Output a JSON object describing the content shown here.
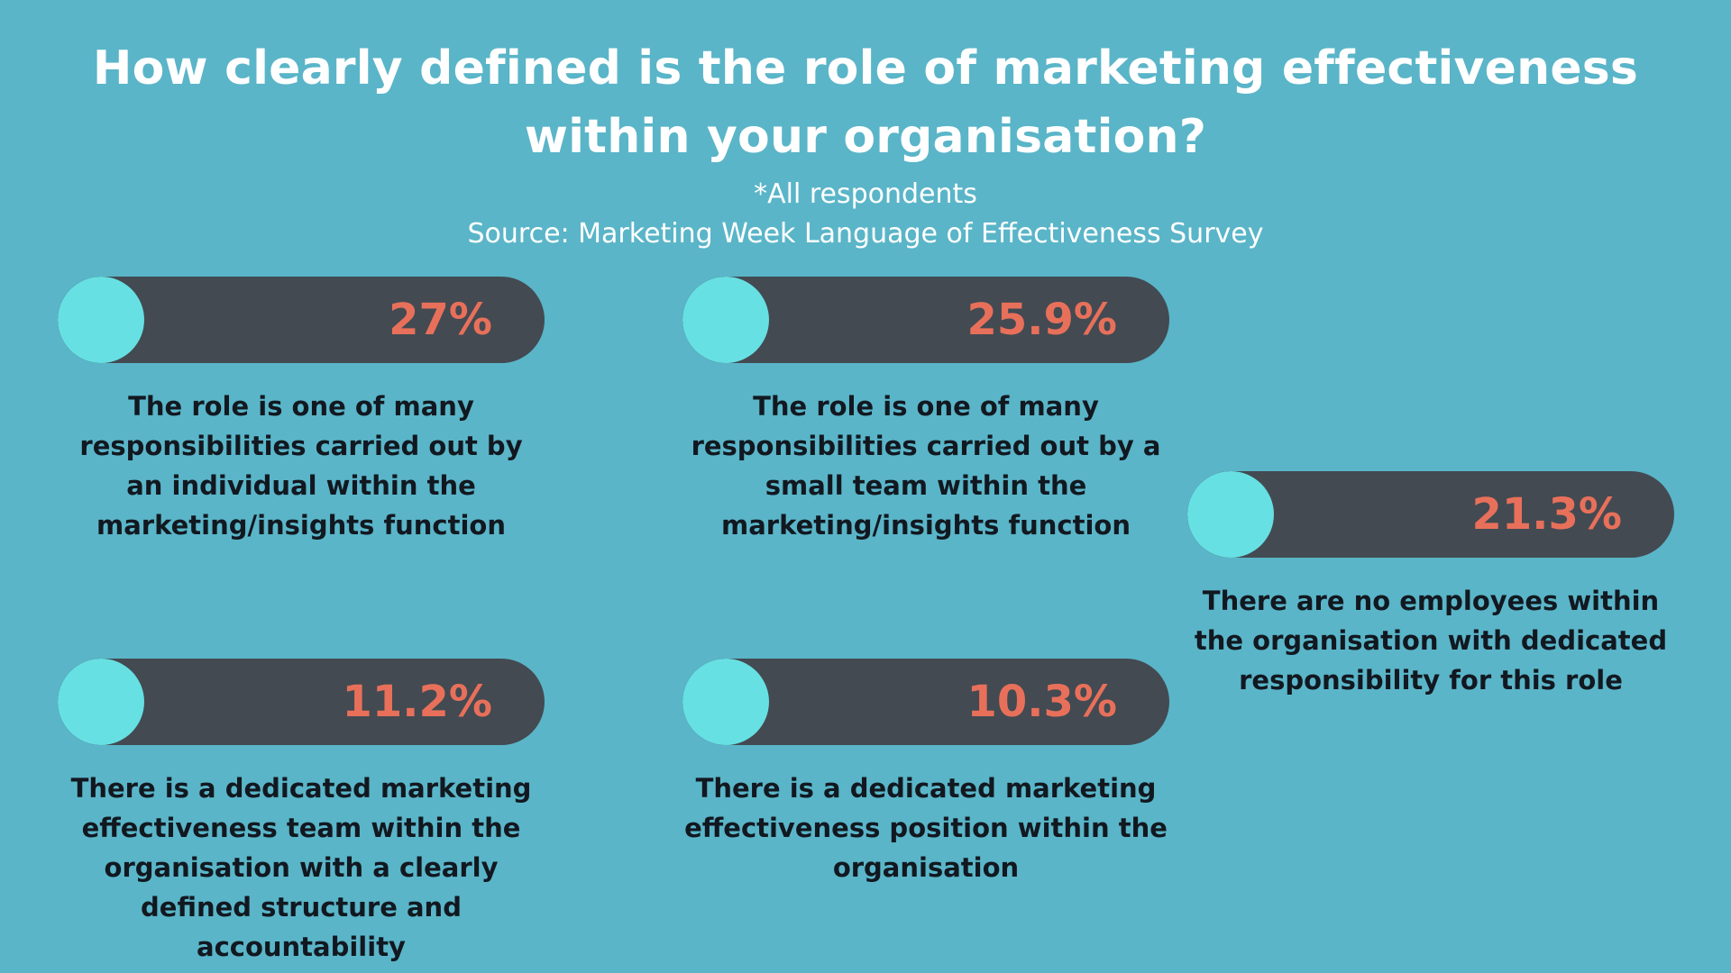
{
  "header": {
    "title_line1": "How clearly defined is the role of marketing effectiveness",
    "title_line2": "within your organisation?",
    "subtitle": "*All respondents",
    "source": "Source: Marketing Week Language of Effectiveness Survey"
  },
  "colors": {
    "background": "#5ab5c8",
    "track": "#434a52",
    "fill": "#67e0e3",
    "percent_text": "#e8705a"
  },
  "chart_data": {
    "type": "bar",
    "title": "How clearly defined is the role of marketing effectiveness within your organisation?",
    "subtitle": "*All respondents",
    "source": "Source: Marketing Week Language of Effectiveness Survey",
    "categories": [
      "The role is one of many responsibilities carried out by an individual within the marketing/insights function",
      "The role is one of many responsibilities carried out by a small team within the marketing/insights function",
      "There are no employees within the organisation with dedicated responsibility for this role",
      "There is a dedicated marketing effectiveness team within the organisation with a clearly defined structure and accountability",
      "There is a dedicated marketing effectiveness position within the organisation"
    ],
    "values": [
      27,
      25.9,
      21.3,
      11.2,
      10.3
    ],
    "value_labels": [
      "27%",
      "25.9%",
      "21.3%",
      "11.2%",
      "10.3%"
    ],
    "ylim": [
      0,
      100
    ]
  }
}
